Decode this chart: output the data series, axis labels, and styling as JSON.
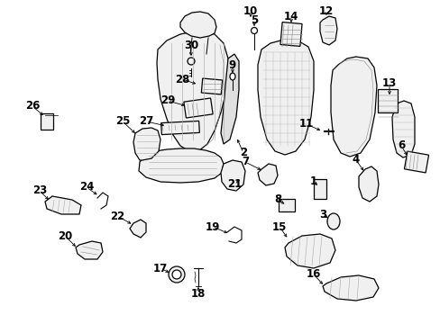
{
  "bg_color": "#ffffff",
  "fig_width": 4.89,
  "fig_height": 3.6,
  "dpi": 100,
  "line_color": "#000000",
  "text_color": "#000000",
  "label_fontsize": 8.5
}
